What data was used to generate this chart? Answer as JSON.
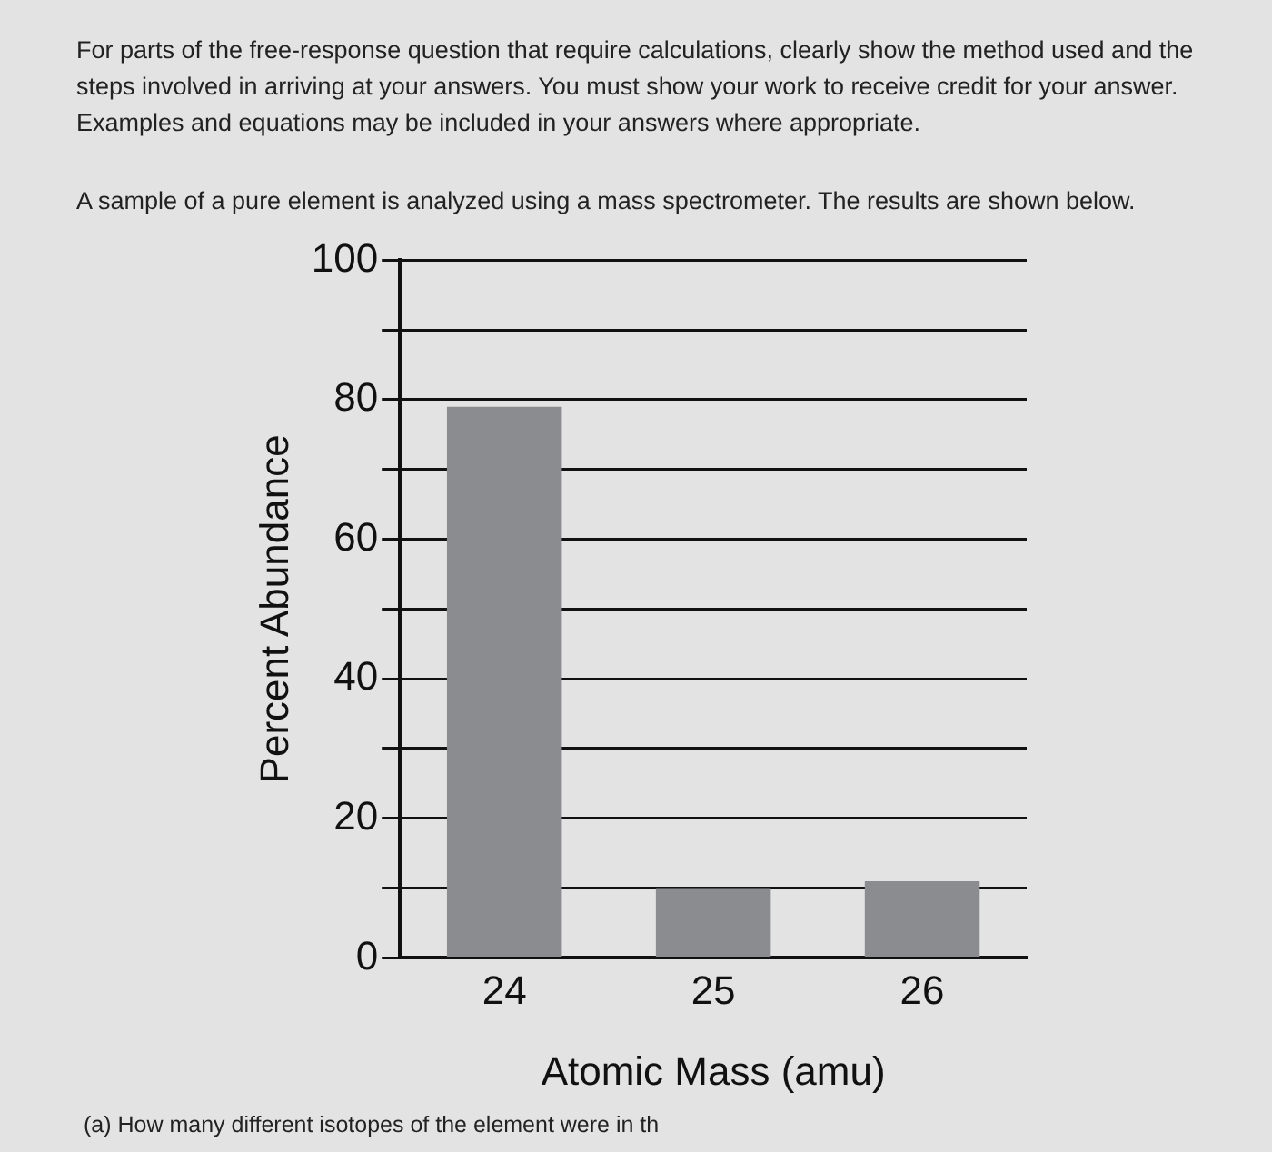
{
  "chart_data": {
    "type": "bar",
    "annotations": [
      "For parts of the free-response question that require calculations, clearly show the method used and the steps involved in arriving at your answers. You must show your work to receive credit for your answer. Examples and equations may be included in your answers where appropriate.",
      "A sample of a pure element is analyzed using a mass spectrometer. The results are shown below.",
      "(a) How many different isotopes of the element were in th"
    ],
    "xlabel": "Atomic Mass (amu)",
    "ylabel": "Percent Abundance",
    "categories": [
      "24",
      "25",
      "26"
    ],
    "values": [
      79,
      10,
      11
    ],
    "color": "#8a8c8f",
    "ylim": [
      0,
      100
    ],
    "yticks": [
      0,
      {
        "value": 10,
        "label": null
      },
      20,
      {
        "value": 30,
        "label": null
      },
      40,
      {
        "value": 50,
        "label": null
      },
      60,
      {
        "value": 70,
        "label": null
      },
      80,
      {
        "value": 90,
        "label": null
      },
      100
    ],
    "grid": "y",
    "legend": false
  }
}
